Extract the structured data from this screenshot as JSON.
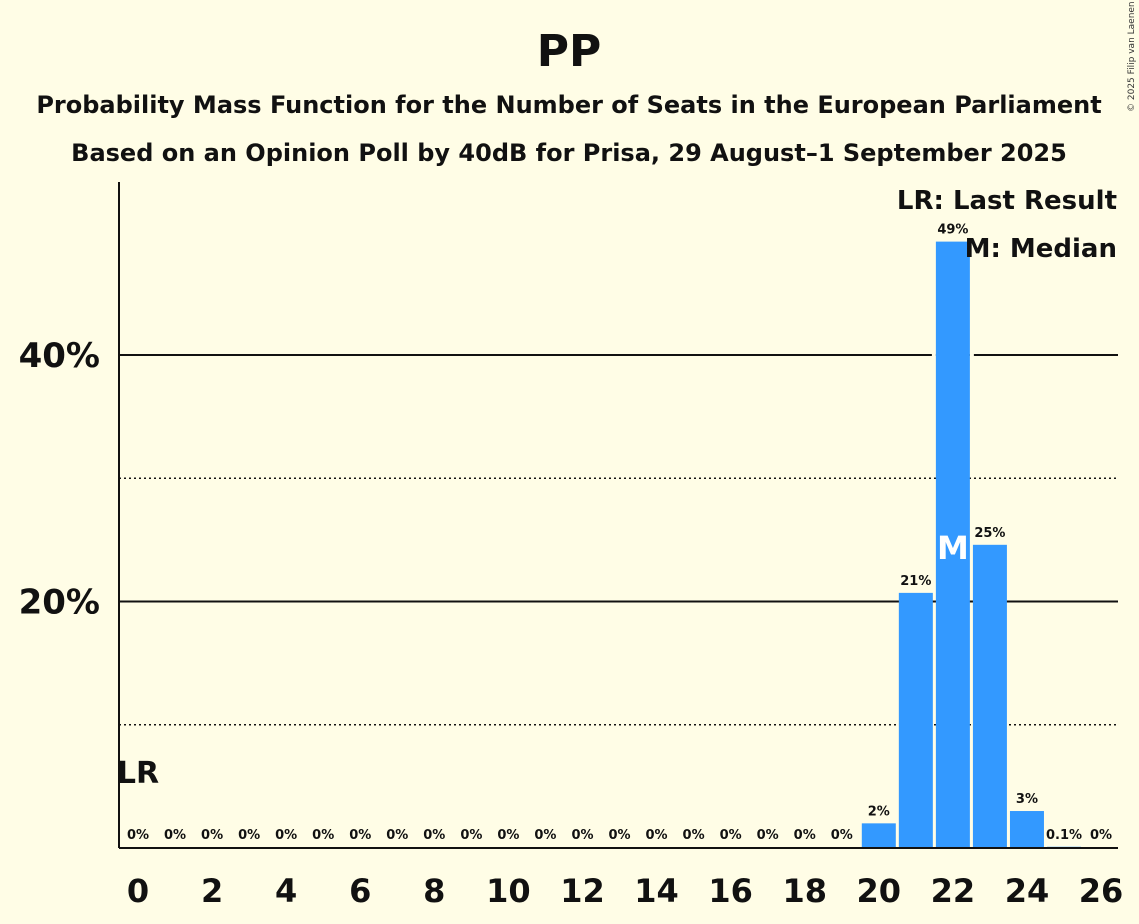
{
  "chart_data": {
    "type": "bar",
    "title": "PP",
    "subtitle": "Probability Mass Function for the Number of Seats in the European Parliament",
    "subtitle2": "Based on an Opinion Poll by 40dB for Prisa, 29 August–1 September 2025",
    "copyright": "© 2025 Filip van Laenen",
    "xlabel": "",
    "ylabel": "",
    "categories": [
      "0",
      "1",
      "2",
      "3",
      "4",
      "5",
      "6",
      "7",
      "8",
      "9",
      "10",
      "11",
      "12",
      "13",
      "14",
      "15",
      "16",
      "17",
      "18",
      "19",
      "20",
      "21",
      "22",
      "23",
      "24",
      "25",
      "26"
    ],
    "values": [
      0,
      0,
      0,
      0,
      0,
      0,
      0,
      0,
      0,
      0,
      0,
      0,
      0,
      0,
      0,
      0,
      0,
      0,
      0,
      0,
      2,
      20.7,
      49.2,
      24.6,
      3.0,
      0.1,
      0
    ],
    "value_labels": [
      "0%",
      "0%",
      "0%",
      "0%",
      "0%",
      "0%",
      "0%",
      "0%",
      "0%",
      "0%",
      "0%",
      "0%",
      "0%",
      "0%",
      "0%",
      "0%",
      "0%",
      "0%",
      "0%",
      "0%",
      "2%",
      "21%",
      "49%",
      "25%",
      "3%",
      "0.1%",
      "0%"
    ],
    "x_tick_labels": [
      "0",
      "2",
      "4",
      "6",
      "8",
      "10",
      "12",
      "14",
      "16",
      "18",
      "20",
      "22",
      "24",
      "26"
    ],
    "ylim": [
      0,
      54
    ],
    "y_ticks": [
      {
        "value": 20,
        "label": "20%"
      },
      {
        "value": 40,
        "label": "40%"
      }
    ],
    "minor_gridlines": [
      10,
      30
    ],
    "last_result": {
      "seat": 0,
      "label": "LR"
    },
    "median": {
      "seat": 22,
      "label": "M"
    },
    "legend": [
      "LR: Last Result",
      "M: Median"
    ],
    "legend_position": "top-right",
    "colors": {
      "bar": "#3399ff",
      "background": "#fffde6",
      "axis": "#111111",
      "median_text": "#ffffff"
    }
  }
}
